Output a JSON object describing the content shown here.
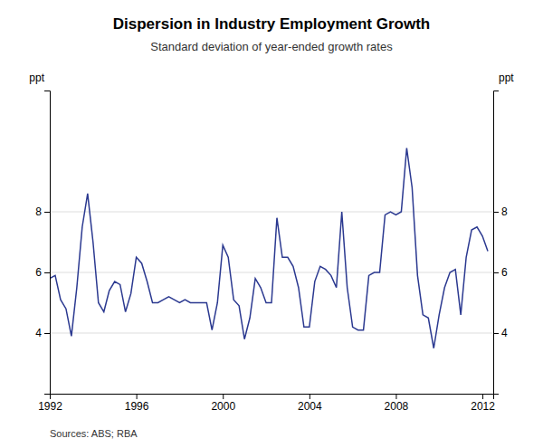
{
  "chart_data": {
    "type": "line",
    "title": "Dispersion in Industry Employment Growth",
    "subtitle": "Standard deviation of year-ended growth rates",
    "ylabel": "ppt",
    "y2label": "ppt",
    "source": "Sources: ABS; RBA",
    "color": "#2B3990",
    "grid": true,
    "xlim": [
      1992.0,
      2012.5
    ],
    "xticks": [
      1992,
      1996,
      2000,
      2004,
      2008,
      2012
    ],
    "ylim": [
      2,
      12
    ],
    "yticks": [
      4,
      6,
      8
    ],
    "y2lim": [
      2,
      12
    ],
    "y2ticks": [
      4,
      6,
      8
    ],
    "x": [
      1992.0,
      1992.25,
      1992.5,
      1992.75,
      1993.0,
      1993.25,
      1993.5,
      1993.75,
      1994.0,
      1994.25,
      1994.5,
      1994.75,
      1995.0,
      1995.25,
      1995.5,
      1995.75,
      1996.0,
      1996.25,
      1996.5,
      1996.75,
      1997.0,
      1997.25,
      1997.5,
      1997.75,
      1998.0,
      1998.25,
      1998.5,
      1998.75,
      1999.0,
      1999.25,
      1999.5,
      1999.75,
      2000.0,
      2000.25,
      2000.5,
      2000.75,
      2001.0,
      2001.25,
      2001.5,
      2001.75,
      2002.0,
      2002.25,
      2002.5,
      2002.75,
      2003.0,
      2003.25,
      2003.5,
      2003.75,
      2004.0,
      2004.25,
      2004.5,
      2004.75,
      2005.0,
      2005.25,
      2005.5,
      2005.75,
      2006.0,
      2006.25,
      2006.5,
      2006.75,
      2007.0,
      2007.25,
      2007.5,
      2007.75,
      2008.0,
      2008.25,
      2008.5,
      2008.75,
      2009.0,
      2009.25,
      2009.5,
      2009.75,
      2010.0,
      2010.25,
      2010.5,
      2010.75,
      2011.0,
      2011.25,
      2011.5,
      2011.75,
      2012.0,
      2012.25
    ],
    "values": [
      5.8,
      5.9,
      5.1,
      4.8,
      3.9,
      5.5,
      7.5,
      8.6,
      7.0,
      5.0,
      4.7,
      5.4,
      5.7,
      5.6,
      4.7,
      5.3,
      6.5,
      6.3,
      5.7,
      5.0,
      5.0,
      5.1,
      5.2,
      5.1,
      5.0,
      5.1,
      5.0,
      5.0,
      5.0,
      5.0,
      4.1,
      5.0,
      6.9,
      6.5,
      5.1,
      4.9,
      3.8,
      4.5,
      5.8,
      5.5,
      5.0,
      5.0,
      7.8,
      6.5,
      6.5,
      6.2,
      5.5,
      4.2,
      4.2,
      5.7,
      6.2,
      6.1,
      5.9,
      5.5,
      8.0,
      5.5,
      4.2,
      4.1,
      4.1,
      5.9,
      6.0,
      6.0,
      7.9,
      8.0,
      7.9,
      8.0,
      10.1,
      8.8,
      5.9,
      4.6,
      4.5,
      3.5,
      4.6,
      5.5,
      6.0,
      6.1,
      4.6,
      6.5,
      7.4,
      7.5,
      7.2,
      6.7
    ]
  }
}
